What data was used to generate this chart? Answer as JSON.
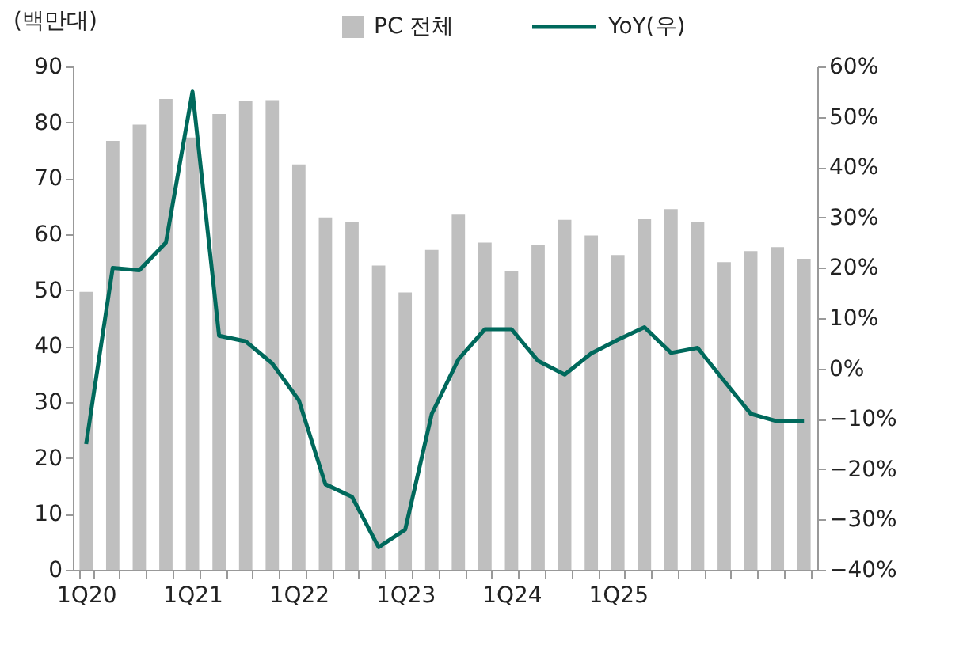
{
  "chart_data": {
    "type": "bar",
    "ylabel": "(백만대)",
    "legend": "top",
    "categories": [
      "1Q20",
      null,
      null,
      null,
      "1Q21",
      null,
      null,
      null,
      "1Q22",
      null,
      null,
      null,
      "1Q23",
      null,
      null,
      null,
      "1Q24",
      null,
      null,
      null,
      "1Q25",
      null,
      null,
      null,
      null,
      null,
      null,
      null
    ],
    "series": [
      {
        "name": "PC 전체",
        "type": "bar",
        "color": "#bfbfbf",
        "values": [
          49.7,
          76.7,
          79.6,
          84.2,
          77.3,
          81.5,
          83.8,
          84,
          72.5,
          63,
          62.2,
          54.4,
          49.6,
          57.2,
          63.5,
          58.5,
          53.5,
          58.1,
          62.6,
          59.8,
          56.3,
          62.7,
          64.5,
          62.2,
          55,
          57,
          57.7,
          55.6
        ]
      },
      {
        "name": "YoY(우)",
        "type": "line",
        "axis": "y2",
        "color": "#00695c",
        "values": [
          -15,
          20,
          19.5,
          25,
          55,
          6.5,
          5.4,
          1,
          -6.3,
          -23,
          -25.5,
          -35.5,
          -32,
          -9,
          1.8,
          7.8,
          7.8,
          1.5,
          -1.2,
          3,
          5.7,
          8.2,
          3.1,
          4.1,
          -2.5,
          -9,
          -10.5,
          -10.5
        ]
      }
    ],
    "ylim": [
      0,
      90
    ],
    "yticks": [
      0,
      10,
      20,
      30,
      40,
      50,
      60,
      70,
      80,
      90
    ],
    "y2lim": [
      -40,
      60
    ],
    "y2ticks": [
      {
        "value": -40,
        "label": "−40%"
      },
      {
        "value": -30,
        "label": "−30%"
      },
      {
        "value": -20,
        "label": "−20%"
      },
      {
        "value": -10,
        "label": "−10%"
      },
      {
        "value": 0,
        "label": "0%"
      },
      {
        "value": 10,
        "label": "10%"
      },
      {
        "value": 20,
        "label": "20%"
      },
      {
        "value": 30,
        "label": "30%"
      },
      {
        "value": 40,
        "label": "40%"
      },
      {
        "value": 50,
        "label": "50%"
      },
      {
        "value": 60,
        "label": "60%"
      }
    ],
    "grid": false
  }
}
